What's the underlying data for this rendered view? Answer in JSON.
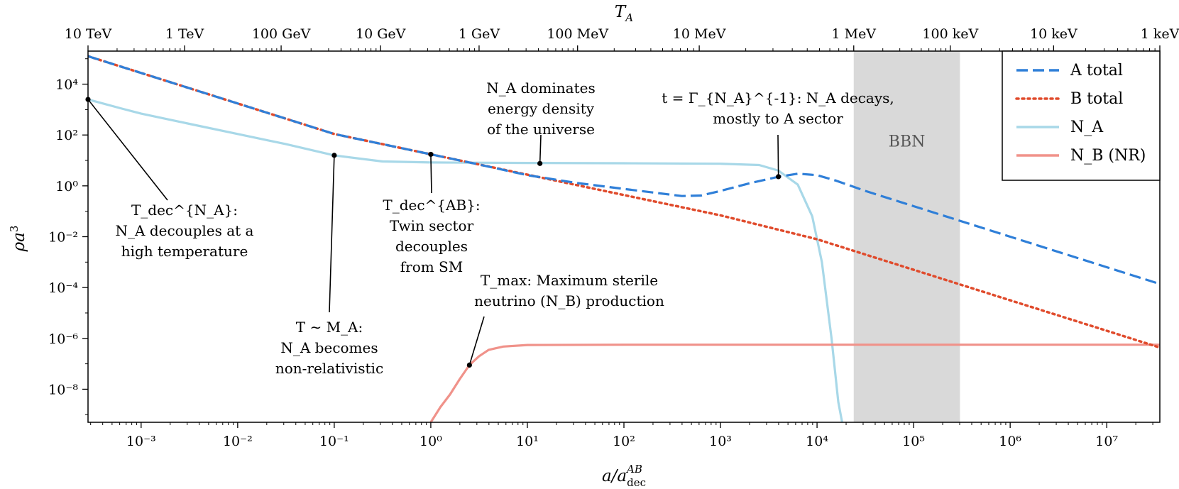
{
  "chart_data": {
    "type": "line",
    "title": "",
    "xlabel": "a/a_dec^AB",
    "ylabel": "ρa³",
    "top_xlabel": "T_A",
    "xscale": "log",
    "yscale": "log",
    "xlim_log10": [
      -3.55,
      7.55
    ],
    "ylim_log10": [
      -9.3,
      5.3
    ],
    "x_ticks": [
      {
        "log10": -3,
        "label": "10⁻³"
      },
      {
        "log10": -2,
        "label": "10⁻²"
      },
      {
        "log10": -1,
        "label": "10⁻¹"
      },
      {
        "log10": 0,
        "label": "10⁰"
      },
      {
        "log10": 1,
        "label": "10¹"
      },
      {
        "log10": 2,
        "label": "10²"
      },
      {
        "log10": 3,
        "label": "10³"
      },
      {
        "log10": 4,
        "label": "10⁴"
      },
      {
        "log10": 5,
        "label": "10⁵"
      },
      {
        "log10": 6,
        "label": "10⁶"
      },
      {
        "log10": 7,
        "label": "10⁷"
      }
    ],
    "y_ticks": [
      {
        "log10": 4,
        "label": "10⁴"
      },
      {
        "log10": 2,
        "label": "10²"
      },
      {
        "log10": 0,
        "label": "10⁰"
      },
      {
        "log10": -2,
        "label": "10⁻²"
      },
      {
        "log10": -4,
        "label": "10⁻⁴"
      },
      {
        "log10": -6,
        "label": "10⁻⁶"
      },
      {
        "log10": -8,
        "label": "10⁻⁸"
      }
    ],
    "top_ticks": [
      {
        "log10": -3.55,
        "label": "10 TeV"
      },
      {
        "log10": -2.55,
        "label": "1 TeV"
      },
      {
        "log10": -1.55,
        "label": "100 GeV"
      },
      {
        "log10": -0.52,
        "label": "10 GeV"
      },
      {
        "log10": 0.5,
        "label": "1 GeV"
      },
      {
        "log10": 1.52,
        "label": "100 MeV"
      },
      {
        "log10": 2.78,
        "label": "10 MeV"
      },
      {
        "log10": 4.38,
        "label": "1 MeV"
      },
      {
        "log10": 5.38,
        "label": "100 keV"
      },
      {
        "log10": 6.45,
        "label": "10 keV"
      },
      {
        "log10": 7.55,
        "label": "1 keV"
      }
    ],
    "shaded_region": {
      "label": "BBN",
      "x_log10": [
        4.38,
        5.48
      ],
      "color": "#d9d9d9"
    },
    "series": [
      {
        "name": "A total",
        "style": "dashed",
        "color": "#2f7fd8",
        "points": [
          [
            -3.55,
            5.1
          ],
          [
            -3.0,
            4.44
          ],
          [
            -2.0,
            3.24
          ],
          [
            -1.0,
            2.04
          ],
          [
            0.0,
            1.24
          ],
          [
            0.5,
            0.84
          ],
          [
            1.0,
            0.42
          ],
          [
            1.5,
            0.12
          ],
          [
            2.0,
            -0.12
          ],
          [
            2.3,
            -0.26
          ],
          [
            2.6,
            -0.4
          ],
          [
            2.8,
            -0.38
          ],
          [
            3.0,
            -0.2
          ],
          [
            3.3,
            0.1
          ],
          [
            3.6,
            0.36
          ],
          [
            3.8,
            0.48
          ],
          [
            4.0,
            0.42
          ],
          [
            4.2,
            0.2
          ],
          [
            4.5,
            -0.2
          ],
          [
            5.0,
            -0.8
          ],
          [
            6.0,
            -2.0
          ],
          [
            7.0,
            -3.2
          ],
          [
            7.55,
            -3.86
          ]
        ]
      },
      {
        "name": "B total",
        "style": "dotted",
        "color": "#e04b2c",
        "points": [
          [
            -3.55,
            5.1
          ],
          [
            -3.0,
            4.44
          ],
          [
            -2.0,
            3.24
          ],
          [
            -1.0,
            2.04
          ],
          [
            0.0,
            1.24
          ],
          [
            1.0,
            0.44
          ],
          [
            2.0,
            -0.36
          ],
          [
            3.0,
            -1.16
          ],
          [
            4.0,
            -2.1
          ],
          [
            5.0,
            -3.3
          ],
          [
            6.0,
            -4.5
          ],
          [
            7.0,
            -5.7
          ],
          [
            7.55,
            -6.36
          ]
        ]
      },
      {
        "name": "N_A",
        "style": "solid",
        "color": "#a8d8e8",
        "points": [
          [
            -3.55,
            3.4
          ],
          [
            -3.2,
            3.04
          ],
          [
            -3.0,
            2.84
          ],
          [
            -2.5,
            2.44
          ],
          [
            -2.0,
            2.04
          ],
          [
            -1.5,
            1.64
          ],
          [
            -1.0,
            1.2
          ],
          [
            -0.5,
            0.96
          ],
          [
            0.0,
            0.92
          ],
          [
            1.0,
            0.9
          ],
          [
            2.0,
            0.89
          ],
          [
            3.0,
            0.87
          ],
          [
            3.4,
            0.82
          ],
          [
            3.6,
            0.6
          ],
          [
            3.8,
            0.05
          ],
          [
            3.95,
            -1.2
          ],
          [
            4.05,
            -3.0
          ],
          [
            4.15,
            -6.0
          ],
          [
            4.22,
            -8.5
          ],
          [
            4.26,
            -9.3
          ]
        ]
      },
      {
        "name": "N_B (NR)",
        "style": "solid",
        "color": "#f0928a",
        "points": [
          [
            0.0,
            -9.3
          ],
          [
            0.1,
            -8.7
          ],
          [
            0.2,
            -8.2
          ],
          [
            0.3,
            -7.6
          ],
          [
            0.4,
            -7.05
          ],
          [
            0.5,
            -6.7
          ],
          [
            0.6,
            -6.45
          ],
          [
            0.75,
            -6.32
          ],
          [
            1.0,
            -6.26
          ],
          [
            2.0,
            -6.25
          ],
          [
            4.0,
            -6.25
          ],
          [
            7.55,
            -6.25
          ]
        ]
      }
    ],
    "legend": {
      "placement": "top-right",
      "entries": [
        {
          "label": "A total",
          "style": "dashed",
          "color": "#2f7fd8"
        },
        {
          "label": "B total",
          "style": "dotted",
          "color": "#e04b2c"
        },
        {
          "label": "N_A",
          "style": "solid",
          "color": "#a8d8e8"
        },
        {
          "label": "N_B (NR)",
          "style": "solid",
          "color": "#f0928a"
        }
      ]
    },
    "annotations": [
      {
        "id": "tdec-na",
        "point": [
          -3.55,
          3.4
        ],
        "lines": [
          "T_dec^{N_A}:",
          "N_A decouples at a",
          "high temperature"
        ]
      },
      {
        "id": "t-ma",
        "point": [
          -1.0,
          1.2
        ],
        "lines": [
          "T ∼ M_A:",
          "N_A becomes",
          "non-relativistic"
        ]
      },
      {
        "id": "tdec-ab",
        "point": [
          0.0,
          1.24
        ],
        "lines": [
          "T_dec^{AB}:",
          "Twin sector",
          "decouples",
          "from SM"
        ]
      },
      {
        "id": "na-dominates",
        "point": [
          1.13,
          0.88
        ],
        "lines": [
          "N_A dominates",
          "energy density",
          "of the universe"
        ]
      },
      {
        "id": "t-gamma",
        "point": [
          3.6,
          0.36
        ],
        "lines": [
          "t = Γ_{N_A}^{-1}: N_A decays,",
          "mostly to A sector"
        ]
      },
      {
        "id": "t-max",
        "point": [
          0.4,
          -7.05
        ],
        "lines": [
          "T_max: Maximum sterile",
          "neutrino (N_B) production"
        ]
      }
    ]
  }
}
